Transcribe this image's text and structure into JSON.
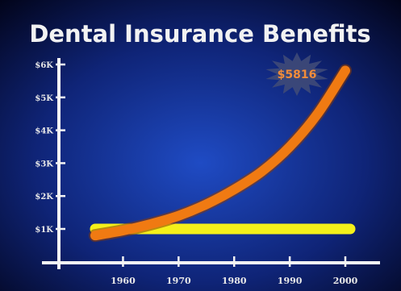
{
  "chart_data": {
    "type": "line",
    "title": "Dental Insurance Benefits",
    "xlabel": "",
    "ylabel": "",
    "x_ticks": [
      "1960",
      "1970",
      "1980",
      "1990",
      "2000"
    ],
    "y_ticks": [
      "$1K",
      "$2K",
      "$3K",
      "$4K",
      "$5K",
      "$6K"
    ],
    "xlim": [
      1955,
      2000
    ],
    "ylim": [
      0,
      6000
    ],
    "grid": false,
    "legend": "none",
    "series": [
      {
        "color": "#f07a12",
        "x": [
          1955,
          1960,
          1965,
          1970,
          1975,
          1980,
          1985,
          1990,
          1995,
          2000
        ],
        "values": [
          800,
          950,
          1150,
          1400,
          1750,
          2200,
          2750,
          3500,
          4500,
          5816
        ]
      },
      {
        "color": "#f4f01a",
        "x": [
          1955,
          2000
        ],
        "values": [
          1000,
          1000
        ]
      }
    ],
    "annotations": [
      {
        "text": "$5816",
        "x": 2000,
        "y": 5816
      }
    ]
  },
  "colors": {
    "background_dark": "#02041a",
    "background_mid": "#1b3aa8",
    "axis": "#f4f4f4",
    "curve": "#f07a12",
    "flat_line": "#f4f01a",
    "callout_star": "#3f4a78"
  }
}
